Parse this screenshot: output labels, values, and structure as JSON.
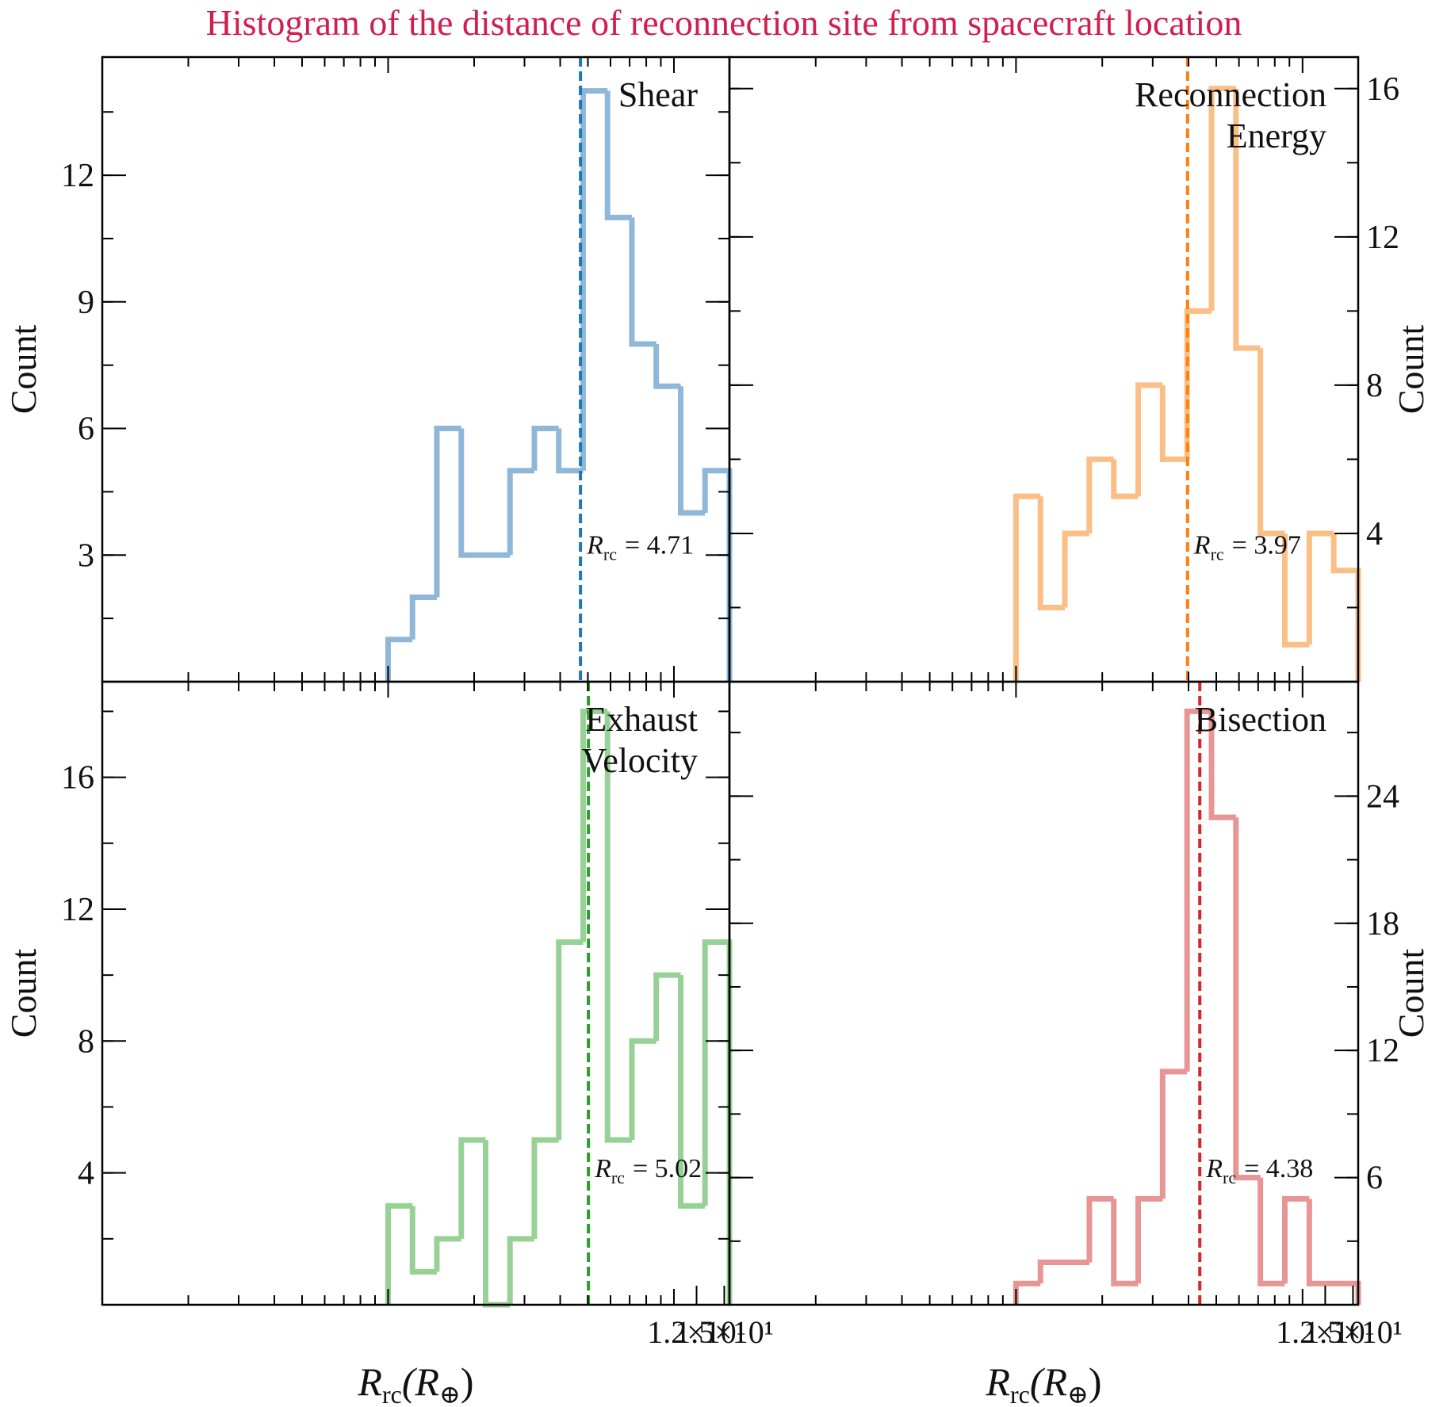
{
  "title": "Histogram of the distance of reconnection site from spacecraft location",
  "chart_data": [
    {
      "type": "histogram",
      "name_lines": [
        "Shear"
      ],
      "color": "#8fb8d8",
      "median_color": "#1f77b4",
      "bins": [
        1.0,
        1.217,
        1.481,
        1.803,
        2.194,
        2.67,
        3.249,
        3.954,
        4.812,
        5.856,
        7.127,
        8.673,
        10.56,
        12.85,
        15.64
      ],
      "values": [
        1,
        2,
        6,
        3,
        3,
        5,
        6,
        5,
        14,
        11,
        8,
        7,
        4,
        5
      ],
      "median": 4.71,
      "median_symbol": "R",
      "median_subscript": "rc",
      "median_text": "= 4.71",
      "xlim": [
        0.1,
        15.64
      ],
      "xscale": "log",
      "ylim": [
        0,
        14.8
      ],
      "yticks": [
        3,
        6,
        9,
        12
      ],
      "ylabel": "Count",
      "yaxis_side": "left"
    },
    {
      "type": "histogram",
      "name_lines": [
        "Reconnection",
        "Energy"
      ],
      "color": "#fbbf86",
      "median_color": "#ff7f0e",
      "bins": [
        1.0,
        1.217,
        1.481,
        1.803,
        2.194,
        2.67,
        3.249,
        3.954,
        4.812,
        5.856,
        7.127,
        8.673,
        10.56,
        12.85,
        15.64
      ],
      "values": [
        5,
        2,
        4,
        6,
        5,
        8,
        6,
        10,
        16,
        9,
        4,
        1,
        4,
        3
      ],
      "median": 3.97,
      "median_symbol": "R",
      "median_subscript": "rc",
      "median_text": "= 3.97",
      "xlim": [
        0.1,
        15.64
      ],
      "xscale": "log",
      "ylim": [
        0,
        16.85
      ],
      "yticks": [
        4,
        8,
        12,
        16
      ],
      "ylabel": "Count",
      "yaxis_side": "right"
    },
    {
      "type": "histogram",
      "name_lines": [
        "Exhaust",
        "Velocity"
      ],
      "color": "#98d196",
      "median_color": "#2ca02c",
      "bins": [
        1.0,
        1.217,
        1.481,
        1.803,
        2.194,
        2.67,
        3.249,
        3.954,
        4.812,
        5.856,
        7.127,
        8.673,
        10.56,
        12.85,
        15.64
      ],
      "values": [
        3,
        1,
        2,
        5,
        0,
        2,
        5,
        11,
        18,
        5,
        8,
        10,
        3,
        11
      ],
      "median": 5.02,
      "median_symbol": "R",
      "median_subscript": "rc",
      "median_text": "= 5.02",
      "xlim": [
        0.1,
        15.64
      ],
      "xscale": "log",
      "xticks": [
        {
          "value": 12,
          "label": "1.2×10¹"
        },
        {
          "value": 15,
          "label": "1.5×10¹"
        }
      ],
      "xlabel": {
        "main": "R",
        "sub": "rc",
        "paren": "(R",
        "sub2": "⊕",
        "close": ")"
      },
      "ylim": [
        0,
        18.9
      ],
      "yticks": [
        4,
        8,
        12,
        16
      ],
      "ylabel": "Count",
      "yaxis_side": "left"
    },
    {
      "type": "histogram",
      "name_lines": [
        "Bisection"
      ],
      "color": "#e89596",
      "median_color": "#d62728",
      "bins": [
        1.0,
        1.217,
        1.481,
        1.803,
        2.194,
        2.67,
        3.249,
        3.954,
        4.812,
        5.856,
        7.127,
        8.673,
        10.56,
        12.85,
        15.64
      ],
      "values": [
        1,
        2,
        2,
        5,
        1,
        5,
        11,
        28,
        23,
        6,
        1,
        5,
        1,
        1
      ],
      "median": 4.38,
      "median_symbol": "R",
      "median_subscript": "rc",
      "median_text": "= 4.38",
      "xlim": [
        0.1,
        15.64
      ],
      "xscale": "log",
      "xticks": [
        {
          "value": 12,
          "label": "1.2×10¹"
        },
        {
          "value": 15,
          "label": "1.5×10¹"
        }
      ],
      "xlabel": {
        "main": "R",
        "sub": "rc",
        "paren": "(R",
        "sub2": "⊕",
        "close": ")"
      },
      "ylim": [
        0,
        29.4
      ],
      "yticks": [
        6,
        12,
        18,
        24
      ],
      "ylabel": "Count",
      "yaxis_side": "right"
    }
  ]
}
